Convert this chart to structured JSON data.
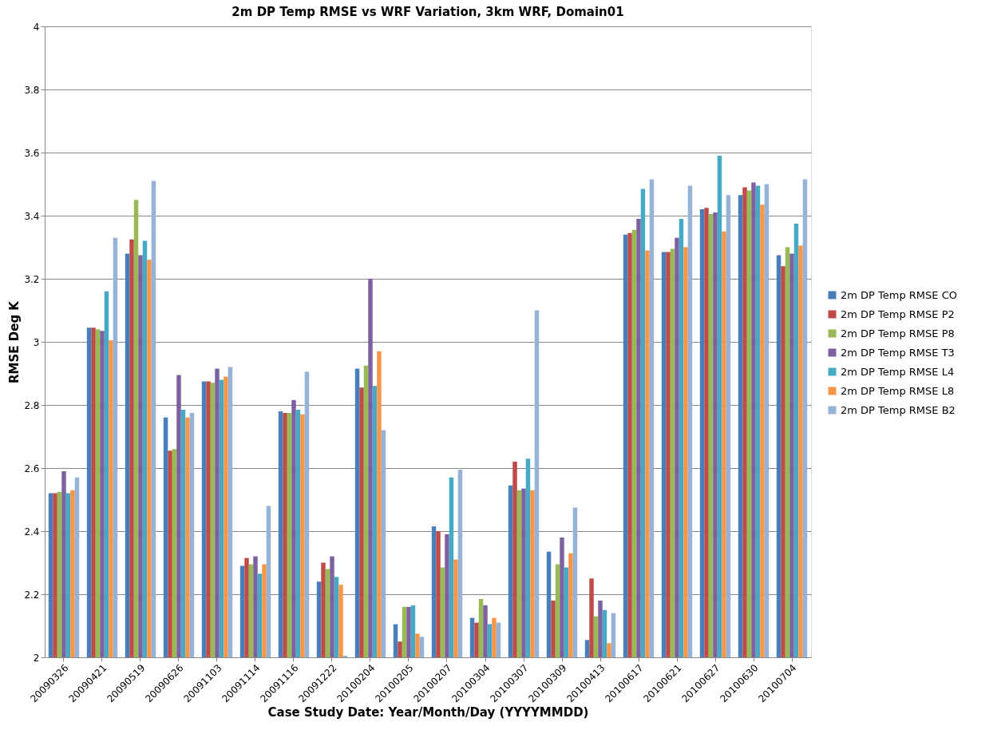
{
  "chart_data": {
    "type": "bar",
    "title": "2m DP Temp RMSE  vs WRF Variation, 3km WRF, Domain01",
    "xlabel": "Case Study Date: Year/Month/Day (YYYYMMDD)",
    "ylabel": "RMSE Deg K",
    "categories": [
      "20090326",
      "20090421",
      "20090519",
      "20090626",
      "20091103",
      "20091114",
      "20091116",
      "20091222",
      "20100204",
      "20100205",
      "20100207",
      "20100304",
      "20100307",
      "20100309",
      "20100413",
      "20100617",
      "20100621",
      "20100627",
      "20100630",
      "20100704"
    ],
    "series": [
      {
        "name": "2m DP Temp RMSE CO",
        "color": "#4a7ebb",
        "values": [
          2.52,
          3.045,
          3.28,
          2.76,
          2.875,
          2.29,
          2.78,
          2.24,
          2.915,
          2.105,
          2.415,
          2.125,
          2.545,
          2.335,
          2.055,
          3.34,
          3.285,
          3.42,
          3.465,
          3.275
        ]
      },
      {
        "name": "2m DP Temp RMSE P2",
        "color": "#be4b48",
        "values": [
          2.52,
          3.045,
          3.325,
          2.655,
          2.875,
          2.315,
          2.775,
          2.3,
          2.855,
          2.05,
          2.4,
          2.11,
          2.62,
          2.18,
          2.25,
          3.345,
          3.285,
          3.425,
          3.49,
          3.24
        ]
      },
      {
        "name": "2m DP Temp RMSE P8",
        "color": "#98b954",
        "values": [
          2.525,
          3.04,
          3.45,
          2.66,
          2.87,
          2.295,
          2.775,
          2.28,
          2.925,
          2.16,
          2.285,
          2.185,
          2.53,
          2.295,
          2.13,
          3.355,
          3.295,
          3.405,
          3.48,
          3.3
        ]
      },
      {
        "name": "2m DP Temp RMSE T3",
        "color": "#7d60a0",
        "values": [
          2.59,
          3.035,
          3.275,
          2.895,
          2.915,
          2.32,
          2.815,
          2.32,
          3.2,
          2.16,
          2.39,
          2.165,
          2.535,
          2.38,
          2.18,
          3.39,
          3.33,
          3.41,
          3.505,
          3.28
        ]
      },
      {
        "name": "2m DP Temp RMSE L4",
        "color": "#46aac5",
        "values": [
          2.52,
          3.16,
          3.32,
          2.785,
          2.88,
          2.265,
          2.785,
          2.255,
          2.86,
          2.165,
          2.57,
          2.105,
          2.63,
          2.285,
          2.15,
          3.485,
          3.39,
          3.59,
          3.495,
          3.375
        ]
      },
      {
        "name": "2m DP Temp RMSE L8",
        "color": "#f79646",
        "values": [
          2.53,
          3.005,
          3.26,
          2.76,
          2.89,
          2.295,
          2.77,
          2.23,
          2.97,
          2.075,
          2.31,
          2.125,
          2.53,
          2.33,
          2.045,
          3.29,
          3.3,
          3.35,
          3.435,
          3.305
        ]
      },
      {
        "name": "2m DP Temp RMSE B2",
        "color": "#95b3d7",
        "values": [
          2.57,
          3.33,
          3.51,
          2.775,
          2.92,
          2.48,
          2.905,
          2.005,
          2.72,
          2.065,
          2.595,
          2.11,
          3.1,
          2.475,
          2.14,
          3.515,
          3.495,
          3.465,
          3.5,
          3.515
        ]
      }
    ],
    "ylim": [
      2,
      4
    ],
    "yticks": [
      2,
      2.2,
      2.4,
      2.6,
      2.8,
      3,
      3.2,
      3.4,
      3.6,
      3.8,
      4
    ],
    "grid": "y",
    "legend": "right"
  }
}
